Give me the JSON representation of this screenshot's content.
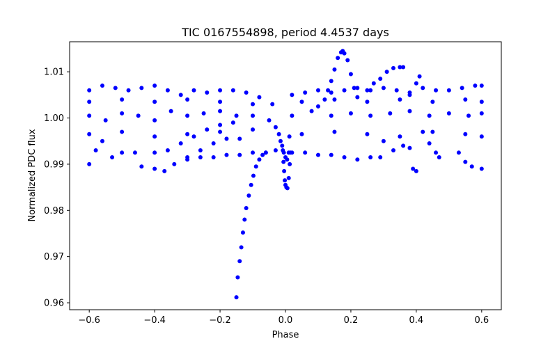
{
  "chart_data": {
    "type": "scatter",
    "title": "TIC 0167554898, period 4.4537 days",
    "xlabel": "Phase",
    "ylabel": "Normalized PDC flux",
    "xlim": [
      -0.66,
      0.66
    ],
    "ylim": [
      0.9585,
      1.0165
    ],
    "xticks": [
      -0.6,
      -0.4,
      -0.2,
      0.0,
      0.2,
      0.4,
      0.6
    ],
    "xtick_labels": [
      "−0.6",
      "−0.4",
      "−0.2",
      "0.0",
      "0.2",
      "0.4",
      "0.6"
    ],
    "yticks": [
      0.96,
      0.97,
      0.98,
      0.99,
      1.0,
      1.01
    ],
    "ytick_labels": [
      "0.96",
      "0.97",
      "0.98",
      "0.99",
      "1.00",
      "1.01"
    ],
    "grid": false,
    "color": "#0000ff",
    "series": [
      {
        "points": [
          [
            -0.6,
            1.006
          ],
          [
            -0.56,
            1.007
          ],
          [
            -0.52,
            1.0065
          ],
          [
            -0.48,
            1.006
          ],
          [
            -0.44,
            1.0065
          ],
          [
            -0.4,
            1.007
          ],
          [
            -0.36,
            1.006
          ],
          [
            -0.32,
            1.005
          ],
          [
            -0.28,
            1.006
          ],
          [
            -0.24,
            1.0055
          ],
          [
            -0.2,
            1.006
          ],
          [
            -0.16,
            1.006
          ],
          [
            -0.12,
            1.0055
          ],
          [
            -0.08,
            1.0045
          ],
          [
            -0.04,
            1.003
          ],
          [
            0.02,
            1.005
          ],
          [
            0.06,
            1.0055
          ],
          [
            0.1,
            1.006
          ],
          [
            0.14,
            1.0055
          ],
          [
            0.18,
            1.006
          ],
          [
            0.22,
            1.0065
          ],
          [
            0.26,
            1.006
          ],
          [
            0.3,
            1.0065
          ],
          [
            0.34,
            1.006
          ],
          [
            0.38,
            1.0055
          ],
          [
            0.42,
            1.0065
          ],
          [
            0.46,
            1.006
          ],
          [
            0.5,
            1.006
          ],
          [
            0.54,
            1.0065
          ],
          [
            0.58,
            1.007
          ],
          [
            0.6,
            1.007
          ],
          [
            -0.6,
            0.99
          ],
          [
            -0.58,
            0.993
          ],
          [
            -0.56,
            0.995
          ],
          [
            -0.53,
            0.9915
          ],
          [
            -0.5,
            0.9925
          ],
          [
            -0.46,
            0.9925
          ],
          [
            -0.44,
            0.9895
          ],
          [
            -0.4,
            0.989
          ],
          [
            -0.37,
            0.9885
          ],
          [
            -0.34,
            0.99
          ],
          [
            -0.3,
            0.991
          ],
          [
            -0.26,
            0.9915
          ],
          [
            -0.22,
            0.9915
          ],
          [
            -0.18,
            0.992
          ],
          [
            -0.14,
            0.992
          ],
          [
            -0.1,
            0.9925
          ],
          [
            -0.06,
            0.9925
          ],
          [
            -0.03,
            0.993
          ],
          [
            0.02,
            0.9925
          ],
          [
            0.06,
            0.9925
          ],
          [
            0.1,
            0.992
          ],
          [
            0.14,
            0.992
          ],
          [
            0.18,
            0.9915
          ],
          [
            0.22,
            0.991
          ],
          [
            0.26,
            0.9915
          ],
          [
            0.29,
            0.9915
          ],
          [
            -0.4,
            0.9925
          ],
          [
            -0.36,
            0.993
          ],
          [
            -0.32,
            0.9945
          ],
          [
            -0.28,
            0.996
          ],
          [
            -0.24,
            0.9975
          ],
          [
            -0.2,
            0.9985
          ],
          [
            -0.16,
            0.999
          ],
          [
            -0.3,
            0.9915
          ],
          [
            -0.26,
            0.993
          ],
          [
            -0.22,
            0.9945
          ],
          [
            -0.18,
            0.9955
          ],
          [
            -0.14,
            0.9955
          ],
          [
            -0.15,
            0.9612
          ],
          [
            -0.146,
            0.9655
          ],
          [
            -0.14,
            0.969
          ],
          [
            -0.135,
            0.972
          ],
          [
            -0.13,
            0.9752
          ],
          [
            -0.125,
            0.978
          ],
          [
            -0.12,
            0.9805
          ],
          [
            -0.112,
            0.9832
          ],
          [
            -0.105,
            0.9855
          ],
          [
            -0.098,
            0.9875
          ],
          [
            -0.09,
            0.9895
          ],
          [
            -0.08,
            0.991
          ],
          [
            -0.07,
            0.992
          ],
          [
            -0.06,
            0.9925
          ],
          [
            -0.008,
            0.993
          ],
          [
            -0.006,
            0.9905
          ],
          [
            -0.004,
            0.9885
          ],
          [
            -0.002,
            0.9865
          ],
          [
            0.0,
            0.9855
          ],
          [
            0.003,
            0.985
          ],
          [
            0.006,
            0.9848
          ],
          [
            0.01,
            0.987
          ],
          [
            0.013,
            0.99
          ],
          [
            0.015,
            0.9925
          ],
          [
            -0.03,
            0.998
          ],
          [
            -0.02,
            0.9965
          ],
          [
            -0.015,
            0.995
          ],
          [
            -0.01,
            0.994
          ],
          [
            -0.005,
            0.9925
          ],
          [
            0.0,
            0.9915
          ],
          [
            0.005,
            0.991
          ],
          [
            0.01,
            0.9925
          ],
          [
            0.012,
            0.996
          ],
          [
            0.1,
            1.0025
          ],
          [
            0.12,
            1.004
          ],
          [
            0.13,
            1.006
          ],
          [
            0.14,
            1.008
          ],
          [
            0.15,
            1.0105
          ],
          [
            0.16,
            1.013
          ],
          [
            0.17,
            1.0142
          ],
          [
            0.175,
            1.0145
          ],
          [
            0.18,
            1.014
          ],
          [
            0.19,
            1.0125
          ],
          [
            0.2,
            1.0095
          ],
          [
            0.21,
            1.0065
          ],
          [
            0.22,
            1.0045
          ],
          [
            0.25,
            1.006
          ],
          [
            0.27,
            1.0075
          ],
          [
            0.29,
            1.0085
          ],
          [
            0.31,
            1.01
          ],
          [
            0.33,
            1.0108
          ],
          [
            0.35,
            1.011
          ],
          [
            0.36,
            1.011
          ],
          [
            0.38,
            1.005
          ],
          [
            0.4,
            1.0075
          ],
          [
            0.41,
            1.009
          ],
          [
            0.3,
            0.995
          ],
          [
            0.33,
            0.993
          ],
          [
            0.36,
            0.994
          ],
          [
            0.38,
            0.9935
          ],
          [
            0.39,
            0.989
          ],
          [
            0.4,
            0.9885
          ],
          [
            0.42,
            0.997
          ],
          [
            0.44,
            0.9945
          ],
          [
            0.46,
            0.9925
          ],
          [
            0.47,
            0.9915
          ],
          [
            0.53,
            0.9925
          ],
          [
            0.55,
            0.9905
          ],
          [
            0.57,
            0.9895
          ],
          [
            0.6,
            0.989
          ],
          [
            -0.6,
            1.0005
          ],
          [
            -0.55,
            0.9995
          ],
          [
            -0.5,
            1.001
          ],
          [
            -0.45,
            1.0005
          ],
          [
            -0.4,
            0.9995
          ],
          [
            -0.35,
            1.0015
          ],
          [
            -0.3,
            1.0005
          ],
          [
            -0.25,
            1.001
          ],
          [
            -0.2,
            1.0015
          ],
          [
            -0.15,
            1.0005
          ],
          [
            -0.1,
            1.0005
          ],
          [
            -0.05,
            0.9995
          ],
          [
            0.02,
            1.0005
          ],
          [
            0.08,
            1.0015
          ],
          [
            0.14,
            1.0005
          ],
          [
            0.2,
            1.001
          ],
          [
            0.26,
            1.0005
          ],
          [
            0.32,
            1.001
          ],
          [
            0.38,
            1.0015
          ],
          [
            0.44,
            1.0005
          ],
          [
            0.5,
            1.001
          ],
          [
            0.56,
            1.0005
          ],
          [
            0.6,
            1.001
          ],
          [
            -0.6,
            0.9965
          ],
          [
            -0.5,
            0.997
          ],
          [
            -0.4,
            0.996
          ],
          [
            -0.3,
            0.9965
          ],
          [
            -0.2,
            0.997
          ],
          [
            -0.1,
            0.9975
          ],
          [
            0.05,
            0.9965
          ],
          [
            0.15,
            0.997
          ],
          [
            0.25,
            0.9965
          ],
          [
            0.35,
            0.996
          ],
          [
            0.45,
            0.997
          ],
          [
            0.55,
            0.9965
          ],
          [
            0.6,
            0.996
          ],
          [
            -0.6,
            1.0035
          ],
          [
            -0.5,
            1.004
          ],
          [
            -0.4,
            1.0035
          ],
          [
            -0.3,
            1.004
          ],
          [
            -0.2,
            1.0035
          ],
          [
            -0.1,
            1.003
          ],
          [
            0.05,
            1.0035
          ],
          [
            0.15,
            1.004
          ],
          [
            0.25,
            1.0035
          ],
          [
            0.35,
            1.004
          ],
          [
            0.45,
            1.0035
          ],
          [
            0.55,
            1.004
          ],
          [
            0.6,
            1.0035
          ]
        ]
      }
    ]
  }
}
